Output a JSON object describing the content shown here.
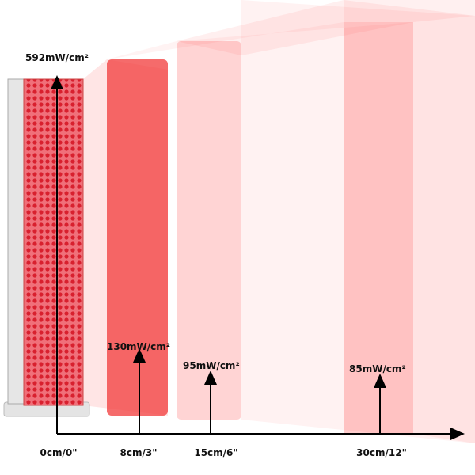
{
  "measurements": [
    {
      "irradiance": "592mW/cm²",
      "distance": "0cm/0\""
    },
    {
      "irradiance": "130mW/cm²",
      "distance": "8cm/3\""
    },
    {
      "irradiance": "95mW/cm²",
      "distance": "15cm/6\""
    },
    {
      "irradiance": "85mW/cm²",
      "distance": "30cm/12\""
    }
  ]
}
